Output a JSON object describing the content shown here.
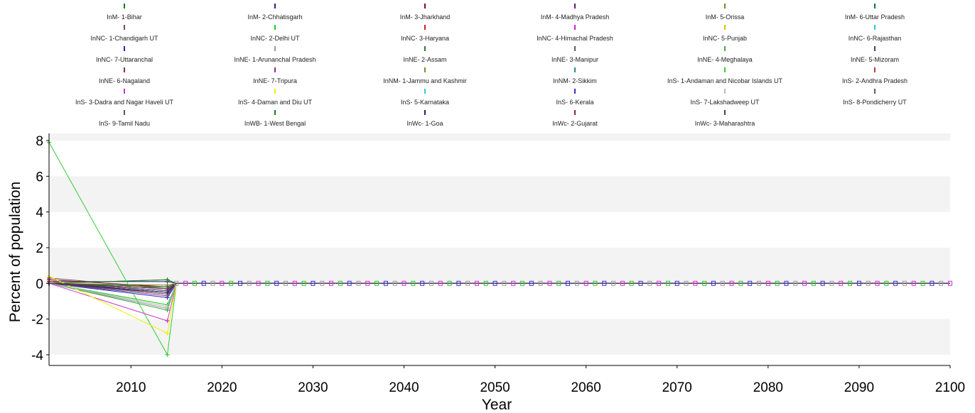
{
  "chart_data": {
    "type": "line",
    "title": "",
    "xlabel": "Year",
    "ylabel": "Percent of population",
    "xlim": [
      2001,
      2100
    ],
    "ylim": [
      -4.6,
      8.4
    ],
    "x_ticks": [
      2010,
      2020,
      2030,
      2040,
      2050,
      2060,
      2070,
      2080,
      2090,
      2100
    ],
    "y_ticks": [
      8,
      6,
      4,
      2,
      0,
      -2,
      -4
    ],
    "background": "alternating light-gray horizontal bands",
    "legend_position": "top",
    "series": [
      {
        "name": "InM-  1-Bihar",
        "color": "#1a7a1a",
        "values": [
          [
            2001,
            0.0
          ],
          [
            2014,
            0.2
          ],
          [
            2015,
            0.0
          ],
          [
            2100,
            0.0
          ]
        ]
      },
      {
        "name": "InM-  2-Chhatisgarh",
        "color": "#1a2a7a",
        "values": [
          [
            2001,
            0.1
          ],
          [
            2014,
            0.1
          ],
          [
            2015,
            0.0
          ],
          [
            2100,
            0.0
          ]
        ]
      },
      {
        "name": "InM-  3-Jharkhand",
        "color": "#7a1010",
        "values": [
          [
            2001,
            0.2
          ],
          [
            2014,
            -0.2
          ],
          [
            2015,
            0.0
          ],
          [
            2100,
            0.0
          ]
        ]
      },
      {
        "name": "InM-  4-Madhya Pradesh",
        "color": "#6a1a7a",
        "values": [
          [
            2001,
            0.0
          ],
          [
            2014,
            -0.3
          ],
          [
            2015,
            0.0
          ],
          [
            2100,
            0.0
          ]
        ]
      },
      {
        "name": "InM-  5-Orissa",
        "color": "#8a7a20",
        "values": [
          [
            2001,
            0.0
          ],
          [
            2014,
            -0.1
          ],
          [
            2015,
            0.0
          ],
          [
            2100,
            0.0
          ]
        ]
      },
      {
        "name": "InM-  6-Uttar Pradesh",
        "color": "#1a6a6a",
        "values": [
          [
            2001,
            0.0
          ],
          [
            2014,
            -0.2
          ],
          [
            2015,
            0.0
          ],
          [
            2100,
            0.0
          ]
        ]
      },
      {
        "name": "InNC- 1-Chandigarh UT",
        "color": "#7a4a5a",
        "values": [
          [
            2001,
            0.3
          ],
          [
            2014,
            -0.3
          ],
          [
            2015,
            0.0
          ],
          [
            2100,
            0.0
          ]
        ]
      },
      {
        "name": "InNC- 2-Delhi UT",
        "color": "#22cc22",
        "values": [
          [
            2001,
            0.0
          ],
          [
            2014,
            -1.2
          ],
          [
            2015,
            0.0
          ],
          [
            2100,
            0.0
          ]
        ]
      },
      {
        "name": "InNC- 3-Haryana",
        "color": "#cc2222",
        "values": [
          [
            2001,
            0.1
          ],
          [
            2014,
            -0.6
          ],
          [
            2015,
            0.0
          ],
          [
            2100,
            0.0
          ]
        ]
      },
      {
        "name": "InNC- 4-Himachal Pradesh",
        "color": "#cc22cc",
        "values": [
          [
            2001,
            0.0
          ],
          [
            2014,
            -0.5
          ],
          [
            2015,
            0.0
          ],
          [
            2100,
            0.0
          ]
        ]
      },
      {
        "name": "InNC- 5-Punjab",
        "color": "#e0c000",
        "values": [
          [
            2001,
            0.0
          ],
          [
            2014,
            -0.4
          ],
          [
            2015,
            0.0
          ],
          [
            2100,
            0.0
          ]
        ]
      },
      {
        "name": "InNC- 6-Rajasthan",
        "color": "#22cccc",
        "values": [
          [
            2001,
            0.0
          ],
          [
            2014,
            -0.4
          ],
          [
            2015,
            0.0
          ],
          [
            2100,
            0.0
          ]
        ]
      },
      {
        "name": "InNC- 7-Uttaranchal",
        "color": "#2222cc",
        "values": [
          [
            2001,
            0.0
          ],
          [
            2014,
            -0.8
          ],
          [
            2015,
            0.0
          ],
          [
            2100,
            0.0
          ]
        ]
      },
      {
        "name": "InNE- 1-Arunanchal Pradesh",
        "color": "#999999",
        "values": [
          [
            2001,
            0.0
          ],
          [
            2014,
            -1.4
          ],
          [
            2015,
            0.0
          ],
          [
            2100,
            0.0
          ]
        ]
      },
      {
        "name": "InNE- 2-Assam",
        "color": "#2a7a2a",
        "values": [
          [
            2001,
            0.0
          ],
          [
            2014,
            0.2
          ],
          [
            2015,
            0.0
          ],
          [
            2100,
            0.0
          ]
        ]
      },
      {
        "name": "InNE- 3-Manipur",
        "color": "#5a5a7a",
        "values": [
          [
            2001,
            0.0
          ],
          [
            2014,
            -0.6
          ],
          [
            2015,
            0.0
          ],
          [
            2100,
            0.0
          ]
        ]
      },
      {
        "name": "InNE- 4-Meghalaya",
        "color": "#44aa44",
        "values": [
          [
            2001,
            0.0
          ],
          [
            2014,
            -1.5
          ],
          [
            2015,
            0.0
          ],
          [
            2100,
            0.0
          ]
        ]
      },
      {
        "name": "InNE- 5-Mizoram",
        "color": "#334488",
        "values": [
          [
            2001,
            0.0
          ],
          [
            2014,
            -0.5
          ],
          [
            2015,
            0.0
          ],
          [
            2100,
            0.0
          ]
        ]
      },
      {
        "name": "InNE- 6-Nagaland",
        "color": "#883333",
        "values": [
          [
            2001,
            0.0
          ],
          [
            2014,
            -0.4
          ],
          [
            2015,
            0.0
          ],
          [
            2100,
            0.0
          ]
        ]
      },
      {
        "name": "InNE- 7-Tripura",
        "color": "#883388",
        "values": [
          [
            2001,
            0.0
          ],
          [
            2014,
            -0.7
          ],
          [
            2015,
            0.0
          ],
          [
            2100,
            0.0
          ]
        ]
      },
      {
        "name": "InNM- 1-Jammu and Kashmir",
        "color": "#888833",
        "values": [
          [
            2001,
            0.0
          ],
          [
            2014,
            -0.5
          ],
          [
            2015,
            0.0
          ],
          [
            2100,
            0.0
          ]
        ]
      },
      {
        "name": "InNM- 2-Sikkim",
        "color": "#338888",
        "values": [
          [
            2001,
            0.0
          ],
          [
            2014,
            -0.6
          ],
          [
            2015,
            0.0
          ],
          [
            2100,
            0.0
          ]
        ]
      },
      {
        "name": "InS-  1-Andaman and Nicobar Islands UT",
        "color": "#33cc33",
        "values": [
          [
            2001,
            7.9
          ],
          [
            2014,
            -4.0
          ],
          [
            2015,
            0.0
          ],
          [
            2100,
            0.0
          ]
        ]
      },
      {
        "name": "InS-  2-Andhra Pradesh",
        "color": "#cc3333",
        "values": [
          [
            2001,
            0.0
          ],
          [
            2014,
            -0.3
          ],
          [
            2015,
            0.0
          ],
          [
            2100,
            0.0
          ]
        ]
      },
      {
        "name": "InS-  3-Dadra and Nagar Haveli UT",
        "color": "#cc33cc",
        "values": [
          [
            2001,
            0.0
          ],
          [
            2014,
            -2.1
          ],
          [
            2015,
            0.0
          ],
          [
            2100,
            0.0
          ]
        ]
      },
      {
        "name": "InS-  4-Daman and Diu UT",
        "color": "#f0f000",
        "values": [
          [
            2001,
            0.4
          ],
          [
            2014,
            -2.8
          ],
          [
            2015,
            0.0
          ],
          [
            2100,
            0.0
          ]
        ]
      },
      {
        "name": "InS-  5-Karnataka",
        "color": "#33cccc",
        "values": [
          [
            2001,
            0.0
          ],
          [
            2014,
            -0.4
          ],
          [
            2015,
            0.0
          ],
          [
            2100,
            0.0
          ]
        ]
      },
      {
        "name": "InS-  6-Kerala",
        "color": "#3333cc",
        "values": [
          [
            2001,
            0.0
          ],
          [
            2014,
            -0.5
          ],
          [
            2015,
            0.0
          ],
          [
            2100,
            0.0
          ]
        ]
      },
      {
        "name": "InS-  7-Lakshadweep UT",
        "color": "#bbbbbb",
        "values": [
          [
            2001,
            0.0
          ],
          [
            2014,
            -1.3
          ],
          [
            2015,
            0.0
          ],
          [
            2100,
            0.0
          ]
        ]
      },
      {
        "name": "InS-  8-Pondicherry UT",
        "color": "#775566",
        "values": [
          [
            2001,
            0.0
          ],
          [
            2014,
            -0.6
          ],
          [
            2015,
            0.0
          ],
          [
            2100,
            0.0
          ]
        ]
      },
      {
        "name": "InS-  9-Tamil Nadu",
        "color": "#446644",
        "values": [
          [
            2001,
            0.0
          ],
          [
            2014,
            -0.3
          ],
          [
            2015,
            0.0
          ],
          [
            2100,
            0.0
          ]
        ]
      },
      {
        "name": "InWB- 1-West Bengal",
        "color": "#227722",
        "values": [
          [
            2001,
            0.0
          ],
          [
            2014,
            -0.2
          ],
          [
            2015,
            0.0
          ],
          [
            2100,
            0.0
          ]
        ]
      },
      {
        "name": "InWc- 1-Goa",
        "color": "#222266",
        "values": [
          [
            2001,
            0.0
          ],
          [
            2014,
            -0.5
          ],
          [
            2015,
            0.0
          ],
          [
            2100,
            0.0
          ]
        ]
      },
      {
        "name": "InWc- 2-Gujarat",
        "color": "#773333",
        "values": [
          [
            2001,
            0.0
          ],
          [
            2014,
            -0.3
          ],
          [
            2015,
            0.0
          ],
          [
            2100,
            0.0
          ]
        ]
      },
      {
        "name": "InWc- 3-Maharashtra",
        "color": "#553377",
        "values": [
          [
            2001,
            0.0
          ],
          [
            2014,
            -0.4
          ],
          [
            2015,
            0.0
          ],
          [
            2100,
            0.0
          ]
        ]
      }
    ]
  }
}
